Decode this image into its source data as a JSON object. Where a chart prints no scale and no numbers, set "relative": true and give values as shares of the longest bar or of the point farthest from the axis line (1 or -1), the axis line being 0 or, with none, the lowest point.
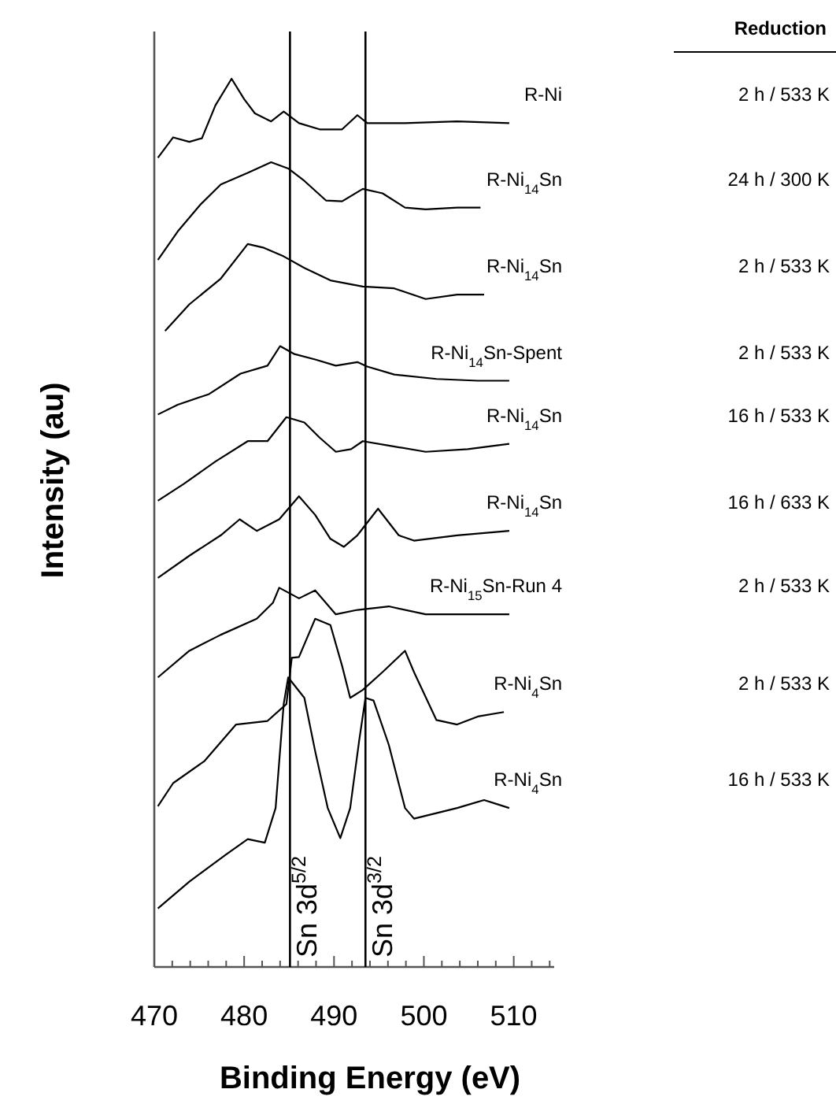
{
  "chart_data": {
    "type": "line",
    "relative": true,
    "xlabel": "Binding Energy (eV)",
    "ylabel": "Intensity (au)",
    "xlim": [
      470,
      514.5
    ],
    "xticks": [
      470,
      {
        "value": 472,
        "label": null
      },
      {
        "value": 474,
        "label": null
      },
      {
        "value": 476,
        "label": null
      },
      {
        "value": 478,
        "label": null
      },
      480,
      {
        "value": 482,
        "label": null
      },
      {
        "value": 484,
        "label": null
      },
      {
        "value": 486,
        "label": null
      },
      {
        "value": 488,
        "label": null
      },
      490,
      {
        "value": 492,
        "label": null
      },
      {
        "value": 494,
        "label": null
      },
      {
        "value": 496,
        "label": null
      },
      {
        "value": 498,
        "label": null
      },
      500,
      {
        "value": 502,
        "label": null
      },
      {
        "value": 504,
        "label": null
      },
      {
        "value": 506,
        "label": null
      },
      {
        "value": 508,
        "label": null
      },
      510,
      {
        "value": 512,
        "label": null
      },
      {
        "value": 514,
        "label": null
      }
    ],
    "grid": false,
    "legend": false,
    "marker": "none",
    "line_style": "solid",
    "tick_labels": "x",
    "ref_lines": [
      {
        "axis": "x",
        "value": 485.1,
        "label": "Sn 3d$^{5/2}$",
        "color": "#000000"
      },
      {
        "axis": "x",
        "value": 493.5,
        "label": "Sn 3d$^{3/2}$",
        "color": "#000000"
      }
    ],
    "annotations": [
      "Reduction",
      "2 h / 533 K",
      "24 h / 300 K",
      "2 h / 533 K",
      "2 h / 533 K",
      "16 h / 533 K",
      "16 h / 633 K",
      "2 h / 533 K",
      "2 h / 533 K",
      "16 h / 533 K"
    ],
    "series": [
      {
        "name": "R-Ni",
        "color": "#000000",
        "x": [
          470.4,
          472.1,
          473.9,
          475.3,
          476.8,
          478.6,
          480,
          481.2,
          483,
          484.4,
          486.1,
          488.4,
          490.9,
          492.6,
          493.7,
          497.9,
          503.7,
          509.5
        ],
        "values": [
          0.911,
          0.934,
          0.929,
          0.933,
          0.97,
          1.0,
          0.977,
          0.961,
          0.952,
          0.963,
          0.95,
          0.943,
          0.943,
          0.959,
          0.95,
          0.95,
          0.952,
          0.95
        ]
      },
      {
        "name": "R-Ni$_{14}$Sn",
        "color": "#000000",
        "x": [
          470.4,
          472.6,
          475.1,
          477.4,
          480.4,
          483,
          484.9,
          486.7,
          489.1,
          490.9,
          493.2,
          495.4,
          497.9,
          500.2,
          503.7,
          506.3
        ],
        "values": [
          0.796,
          0.828,
          0.858,
          0.881,
          0.894,
          0.906,
          0.899,
          0.885,
          0.863,
          0.862,
          0.876,
          0.871,
          0.855,
          0.853,
          0.855,
          0.855
        ]
      },
      {
        "name": "R-Ni$_{14}$Sn",
        "color": "#000000",
        "x": [
          471.2,
          473.9,
          477.4,
          480.4,
          482.1,
          484.4,
          486.7,
          489.6,
          493.2,
          496.7,
          500.2,
          503.7,
          506.7
        ],
        "values": [
          0.716,
          0.746,
          0.775,
          0.814,
          0.81,
          0.8,
          0.787,
          0.773,
          0.766,
          0.764,
          0.752,
          0.757,
          0.757
        ]
      },
      {
        "name": "R-Ni$_{14}$Sn-Spent",
        "color": "#000000",
        "x": [
          470.4,
          472.6,
          476.1,
          479.6,
          482.6,
          484,
          485.6,
          487.9,
          490.2,
          492.6,
          493.7,
          496.7,
          501.4,
          506,
          509.5
        ],
        "values": [
          0.622,
          0.633,
          0.645,
          0.668,
          0.677,
          0.699,
          0.69,
          0.684,
          0.677,
          0.681,
          0.676,
          0.667,
          0.662,
          0.66,
          0.66
        ]
      },
      {
        "name": "R-Ni$_{14}$Sn",
        "color": "#000000",
        "x": [
          470.4,
          473.3,
          476.8,
          480.4,
          482.6,
          484.7,
          486.7,
          488.4,
          490.2,
          491.9,
          493.2,
          496.1,
          500.2,
          504.9,
          509.5
        ],
        "values": [
          0.525,
          0.544,
          0.569,
          0.592,
          0.592,
          0.619,
          0.613,
          0.596,
          0.58,
          0.583,
          0.592,
          0.587,
          0.58,
          0.583,
          0.589
        ]
      },
      {
        "name": "R-Ni$_{14}$Sn",
        "color": "#000000",
        "x": [
          470.4,
          473.9,
          477.4,
          479.5,
          481.4,
          483.9,
          486.1,
          487.9,
          489.6,
          491.1,
          492.6,
          494.9,
          497.2,
          498.9,
          503.7,
          509.5
        ],
        "values": [
          0.438,
          0.463,
          0.486,
          0.504,
          0.491,
          0.504,
          0.53,
          0.509,
          0.482,
          0.473,
          0.486,
          0.516,
          0.486,
          0.48,
          0.486,
          0.491
        ]
      },
      {
        "name": "R-Ni$_{15}$Sn-Run 4",
        "color": "#000000",
        "x": [
          470.4,
          473.9,
          477.4,
          481.4,
          483.2,
          483.9,
          486.1,
          487.9,
          490.2,
          492.6,
          496.1,
          500.2,
          509.5
        ],
        "values": [
          0.326,
          0.356,
          0.374,
          0.392,
          0.41,
          0.427,
          0.415,
          0.424,
          0.397,
          0.402,
          0.406,
          0.397,
          0.397
        ]
      },
      {
        "name": "R-Ni$_{4}$Sn",
        "color": "#000000",
        "x": [
          470.4,
          472.1,
          475.6,
          479.1,
          482.6,
          484.7,
          485.3,
          486.1,
          487.9,
          489.6,
          490.9,
          491.8,
          493.2,
          495.4,
          497.9,
          498.9,
          501.4,
          503.7,
          506,
          508.9
        ],
        "values": [
          0.181,
          0.207,
          0.232,
          0.273,
          0.277,
          0.296,
          0.348,
          0.349,
          0.392,
          0.385,
          0.339,
          0.303,
          0.312,
          0.332,
          0.356,
          0.332,
          0.278,
          0.273,
          0.282,
          0.287
        ]
      },
      {
        "name": "R-Ni$_{4}$Sn",
        "color": "#000000",
        "x": [
          470.4,
          473.9,
          477.9,
          480.4,
          482.3,
          483.5,
          484.4,
          484.9,
          486.7,
          487.9,
          489.3,
          490.7,
          491.8,
          492.8,
          493.5,
          494.4,
          496.1,
          497.9,
          498.9,
          503.7,
          506.7,
          509.5
        ],
        "values": [
          0.066,
          0.096,
          0.126,
          0.144,
          0.14,
          0.179,
          0.296,
          0.326,
          0.303,
          0.243,
          0.179,
          0.145,
          0.179,
          0.255,
          0.303,
          0.3,
          0.25,
          0.179,
          0.167,
          0.179,
          0.188,
          0.179
        ]
      }
    ]
  }
}
